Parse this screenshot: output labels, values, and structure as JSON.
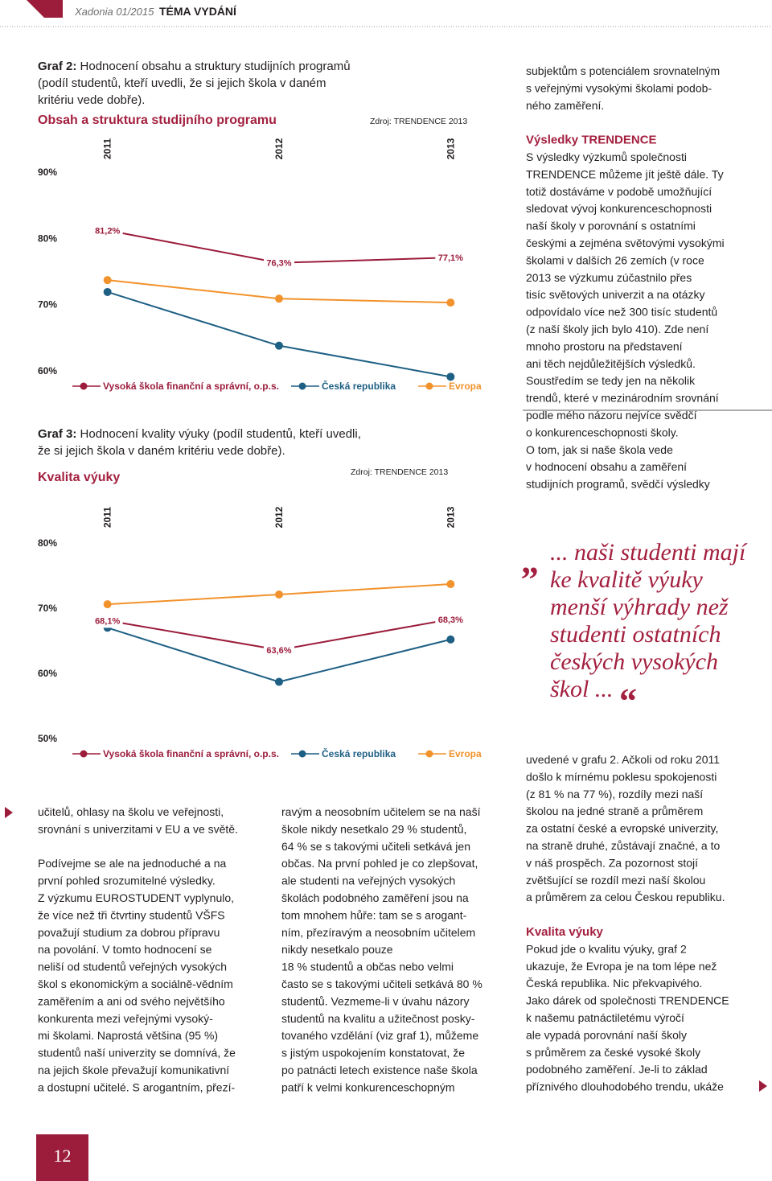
{
  "header": {
    "magazine": "Xadonia 01/2015",
    "section": "TÉMA VYDÁNÍ"
  },
  "chart_data": [
    {
      "type": "line",
      "caption_label": "Graf 2:",
      "caption": [
        "Hodnocení obsahu a struktury studijních programů",
        "(podíl studentů, kteří uvedli, že si jejich škola v daném",
        "kritériu vede dobře)."
      ],
      "title": "Obsah a struktura studijního programu",
      "source": "Zdroj: TRENDENCE 2013",
      "categories": [
        "2011",
        "2012",
        "2013"
      ],
      "ylim": [
        58,
        92
      ],
      "yticks": [
        {
          "value": 90,
          "label": "90%"
        },
        {
          "value": 80,
          "label": "80%"
        },
        {
          "value": 70,
          "label": "70%"
        },
        {
          "value": 60,
          "label": "60%"
        }
      ],
      "grid": false,
      "series": [
        {
          "name": "Vysoká škola finanční a správní, o.p.s.",
          "color": "#9b1c3b",
          "values": [
            81.2,
            76.3,
            77.1
          ],
          "value_labels": [
            "81,2%",
            "76,3%",
            "77,1%"
          ]
        },
        {
          "name": "Česká republika",
          "color": "#1e5f84",
          "values": [
            71.9,
            63.8,
            59.1
          ]
        },
        {
          "name": "Evropa",
          "color": "#f2922c",
          "values": [
            73.7,
            70.9,
            70.3
          ]
        }
      ]
    },
    {
      "type": "line",
      "caption_label": "Graf 3:",
      "caption": [
        "Hodnocení kvality výuky (podíl studentů, kteří uvedli,",
        "že si jejich škola v daném kritériu vede dobře)."
      ],
      "title": "Kvalita výuky",
      "source": "Zdroj: TRENDENCE 2013",
      "categories": [
        "2011",
        "2012",
        "2013"
      ],
      "ylim": [
        48,
        82
      ],
      "yticks": [
        {
          "value": 80,
          "label": "80%"
        },
        {
          "value": 70,
          "label": "70%"
        },
        {
          "value": 60,
          "label": "60%"
        },
        {
          "value": 50,
          "label": "50%"
        }
      ],
      "grid": false,
      "series": [
        {
          "name": "Vysoká škola finanční a správní, o.p.s.",
          "color": "#9b1c3b",
          "values": [
            68.1,
            63.6,
            68.3
          ],
          "value_labels": [
            "68,1%",
            "63,6%",
            "68,3%"
          ]
        },
        {
          "name": "Česká republika",
          "color": "#1e5f84",
          "values": [
            67.0,
            58.7,
            65.2
          ]
        },
        {
          "name": "Evropa",
          "color": "#f2922c",
          "values": [
            70.6,
            72.1,
            73.7
          ]
        }
      ]
    }
  ],
  "sidebar": [
    {
      "lines": [
        "subjektům s potenciálem srovnatelným",
        "s veřejnými vysokými školami podob-",
        "ného zaměření."
      ]
    },
    {
      "heading": "Výsledky TRENDENCE",
      "lines": [
        "S výsledky výzkumů společnosti",
        "TRENDENCE můžeme jít ještě dále. Ty",
        "totiž dostáváme v podobě umožňující",
        "sledovat vývoj konkurenceschopnosti",
        "naší školy v porovnání s ostatními",
        "českými a zejména světovými vysokými",
        "školami v dalších 26 zemích (v roce",
        "2013 se výzkumu zúčastnilo přes",
        "tisíc světových univerzit a na otázky",
        "odpovídalo více než 300 tisíc studentů",
        "(z naší školy jich bylo 410). Zde není",
        "mnoho prostoru na představení",
        "ani těch nejdůležitějších výsledků.",
        "Soustředím se tedy jen na několik",
        "trendů, které v mezinárodním srovnání",
        "podle mého názoru nejvíce svědčí",
        "o konkurenceschopnosti školy.",
        "O tom, jak si naše škola vede",
        "v hodnocení obsahu a zaměření",
        "studijních programů, svědčí výsledky"
      ]
    }
  ],
  "quote": {
    "open": "„",
    "lines": [
      "... naši studenti mají",
      "ke kvalitě výuky",
      "menší výhrady než",
      "studenti ostatních",
      "českých vysokých",
      "škol ..."
    ],
    "close": "“"
  },
  "columns": [
    [
      {
        "lines": [
          "učitelů, ohlasy na školu ve veřejnosti,",
          "srovnání s univerzitami v EU a ve světě."
        ]
      },
      {
        "lines": [
          "Podívejme se ale na jednoduché a na",
          "první pohled srozumitelné výsledky.",
          "Z výzkumu EUROSTUDENT vyplynulo,",
          "že více než tři čtvrtiny studentů VŠFS",
          "považují studium za dobrou přípravu",
          "na povolání. V tomto hodnocení se",
          "neliší od studentů veřejných vysokých",
          "škol s ekonomickým a sociálně-vědním",
          "zaměřením a ani od svého největšího",
          "konkurenta mezi veřejnými vysoký-",
          "mi školami. Naprostá většina (95 %)",
          "studentů naší univerzity se domnívá, že",
          "na jejich škole převažují komunikativní",
          "a dostupní učitelé. S arogantním, přezí-"
        ]
      }
    ],
    [
      {
        "lines": [
          "ravým a neosobním učitelem se na naší",
          "škole nikdy nesetkalo 29 % studentů,",
          "64 % se s takovými učiteli setkává jen",
          "občas. Na první pohled je co zlepšovat,",
          "ale studenti na veřejných vysokých",
          "školách podobného zaměření jsou na",
          "tom mnohem hůře: tam se s arogant-",
          "ním, přezíravým a neosobním učitelem",
          "nikdy nesetkalo pouze",
          "18 % studentů a občas nebo velmi",
          "často se s takovými učiteli setkává 80 %",
          "studentů. Vezmeme-li v úvahu názory",
          "studentů na kvalitu a užitečnost posky-",
          "tovaného vzdělání (viz graf 1), můžeme",
          "s jistým uspokojením konstatovat, že",
          "po patnácti letech existence naše škola",
          "patří k velmi konkurenceschopným"
        ]
      }
    ],
    [
      {
        "lines": [
          "uvedené v grafu 2. Ačkoli od roku 2011",
          "došlo k mírnému poklesu spokojenosti",
          "(z 81 % na 77 %), rozdíly mezi naší",
          "školou na jedné straně a průměrem",
          "za ostatní české a evropské univerzity,",
          "na straně druhé, zůstávají značné, a to",
          "v náš prospěch. Za pozornost stojí",
          "zvětšující se rozdíl mezi naší školou",
          "a průměrem za celou Českou republiku."
        ]
      },
      {
        "heading": "Kvalita výuky",
        "lines": [
          "Pokud jde o kvalitu výuky, graf 2",
          "ukazuje, že Evropa je na tom lépe než",
          "Česká republika. Nic překvapivého.",
          "Jako dárek od společnosti TRENDENCE",
          "k našemu patnáctiletému výročí",
          "ale vypadá porovnání naší školy",
          "s průměrem za české vysoké školy",
          "podobného zaměření. Je-li to základ",
          "příznivého dlouhodobého trendu, ukáže"
        ]
      }
    ]
  ],
  "page_number": "12"
}
